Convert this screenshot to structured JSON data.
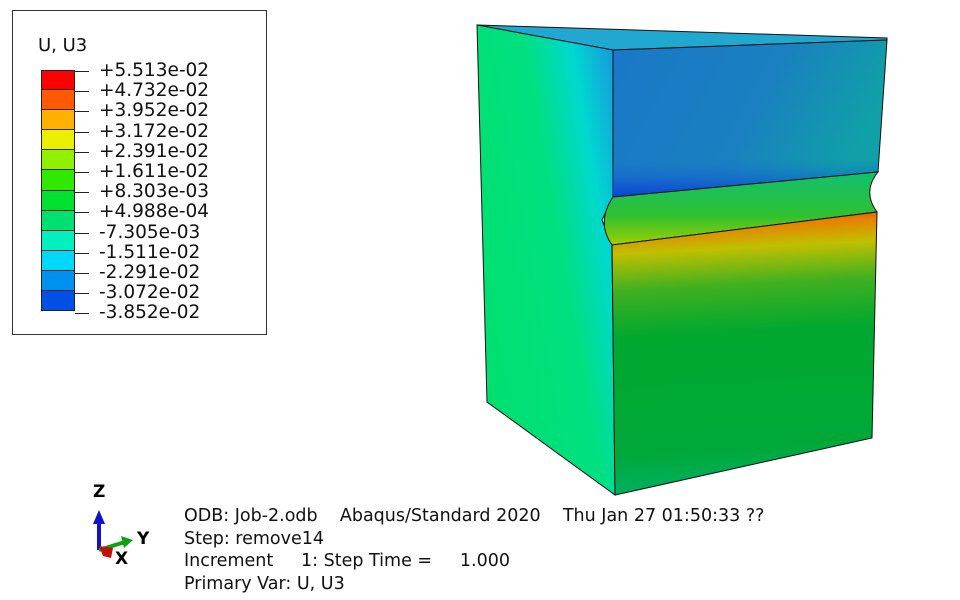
{
  "legend": {
    "title": "U, U3",
    "values": [
      "+5.513e-02",
      "+4.732e-02",
      "+3.952e-02",
      "+3.172e-02",
      "+2.391e-02",
      "+1.611e-02",
      "+8.303e-03",
      "+4.988e-04",
      "-7.305e-03",
      "-1.511e-02",
      "-2.291e-02",
      "-3.072e-02",
      "-3.852e-02"
    ],
    "colors": [
      "#ff0000",
      "#ff5a00",
      "#ffb000",
      "#e8f000",
      "#90f000",
      "#30e800",
      "#00e030",
      "#00e070",
      "#00f0c0",
      "#00d8f8",
      "#0090f0",
      "#0050e8",
      "#0000f0"
    ]
  },
  "triad": {
    "z": "Z",
    "y": "Y",
    "x": "X"
  },
  "info": {
    "line1": "ODB: Job-2.odb    Abaqus/Standard 2020    Thu Jan 27 01:50:33 ??",
    "line2": "Step: remove14",
    "line3": "Increment     1: Step Time =     1.000",
    "line4": "Primary Var: U, U3"
  }
}
